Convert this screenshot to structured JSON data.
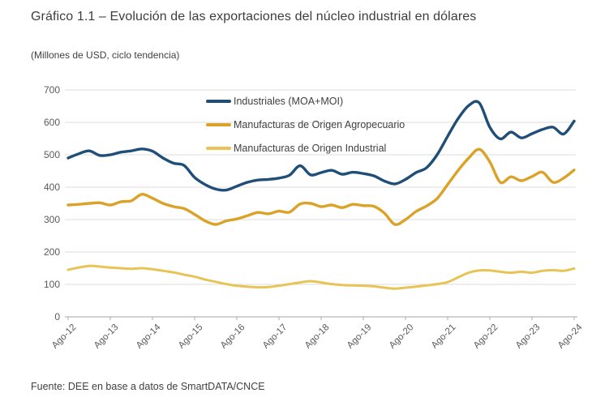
{
  "header": {
    "title": "Gráfico 1.1 – Evolución de las exportaciones del núcleo industrial en dólares",
    "subtitle": "(Millones de USD, ciclo tendencia)"
  },
  "footer": {
    "source": "Fuente: DEE en base a datos de SmartDATA/CNCE"
  },
  "colors": {
    "title_text": "#3d3d3d",
    "axis_line": "#b8b8b8",
    "gridline": "#dcdcdc",
    "tick_text": "#595959",
    "series_blue": "#1f4e79",
    "series_orange": "#dba228",
    "series_yellow": "#e7c455"
  },
  "chart_data": {
    "type": "line",
    "title": "Gráfico 1.1 – Evolución de las exportaciones del núcleo industrial en dólares",
    "subtitle": "(Millones de USD, ciclo tendencia)",
    "ylabel": "Millones de USD",
    "xlabel": "",
    "ylim": [
      0,
      700
    ],
    "y_ticks": [
      0,
      100,
      200,
      300,
      400,
      500,
      600,
      700
    ],
    "x_tick_labels": [
      "Ago-12",
      "Ago-13",
      "Ago-14",
      "Ago-15",
      "Ago-16",
      "Ago-17",
      "Ago-18",
      "Ago-19",
      "Ago-20",
      "Ago-21",
      "Ago-22",
      "Ago-23",
      "Ago-24"
    ],
    "x_start": "Ago-12",
    "x_end": "Ago-24",
    "sampling": "quarterly",
    "grid": "horizontal",
    "legend_position": "top-left-inside",
    "series": [
      {
        "name": "Industriales (MOA+MOI)",
        "color": "#1f4e79",
        "values": [
          490,
          503,
          512,
          498,
          500,
          508,
          512,
          518,
          511,
          490,
          474,
          467,
          430,
          408,
          394,
          391,
          403,
          415,
          422,
          424,
          428,
          437,
          466,
          438,
          445,
          452,
          440,
          446,
          442,
          435,
          419,
          410,
          424,
          445,
          460,
          500,
          557,
          612,
          652,
          660,
          585,
          549,
          570,
          552,
          565,
          578,
          585,
          564,
          604
        ]
      },
      {
        "name": "Manufacturas de Origen Agropecuario",
        "color": "#dba228",
        "values": [
          345,
          347,
          350,
          352,
          345,
          355,
          358,
          378,
          366,
          350,
          340,
          334,
          316,
          296,
          285,
          296,
          302,
          312,
          322,
          318,
          326,
          323,
          348,
          350,
          340,
          345,
          337,
          347,
          343,
          341,
          320,
          285,
          300,
          325,
          342,
          365,
          408,
          452,
          490,
          517,
          478,
          415,
          432,
          420,
          433,
          446,
          415,
          428,
          453
        ]
      },
      {
        "name": "Manufacturas de Origen Industrial",
        "color": "#e7c455",
        "values": [
          145,
          152,
          157,
          155,
          152,
          150,
          148,
          150,
          147,
          142,
          137,
          130,
          124,
          115,
          108,
          101,
          96,
          93,
          91,
          92,
          96,
          101,
          106,
          110,
          106,
          101,
          98,
          97,
          96,
          94,
          90,
          87,
          90,
          93,
          97,
          101,
          107,
          122,
          136,
          143,
          143,
          139,
          136,
          139,
          136,
          142,
          144,
          142,
          149
        ]
      }
    ]
  }
}
